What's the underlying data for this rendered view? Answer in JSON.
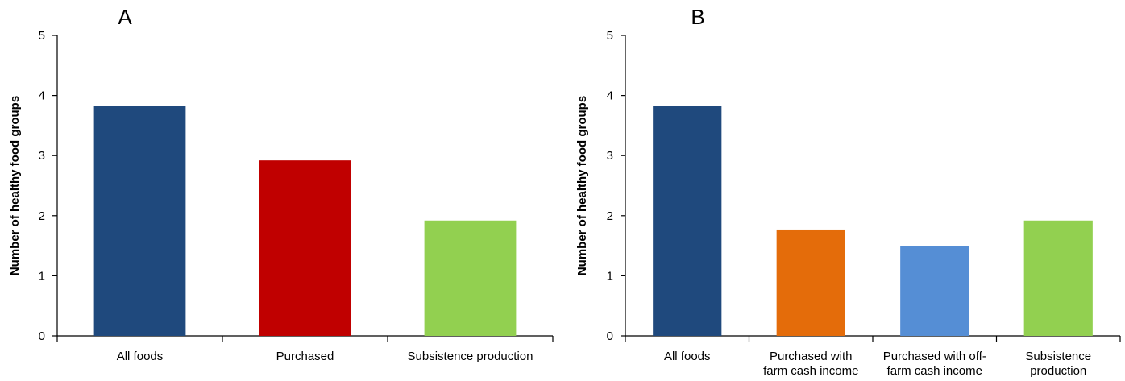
{
  "chart_data": [
    {
      "type": "bar",
      "panel": "A",
      "ylabel": "Number of healthy food groups",
      "ylim": [
        0,
        5
      ],
      "yticks": [
        0,
        1,
        2,
        3,
        4,
        5
      ],
      "categories": [
        [
          "All foods"
        ],
        [
          "Purchased"
        ],
        [
          "Subsistence production"
        ]
      ],
      "values": [
        3.83,
        2.92,
        1.92
      ],
      "colors": [
        "#1F497D",
        "#C00000",
        "#92D050"
      ],
      "grid": false,
      "legend": "none"
    },
    {
      "type": "bar",
      "panel": "B",
      "ylabel": "Number of healthy food groups",
      "ylim": [
        0,
        5
      ],
      "yticks": [
        0,
        1,
        2,
        3,
        4,
        5
      ],
      "categories": [
        [
          "All foods"
        ],
        [
          "Purchased with",
          "farm cash income"
        ],
        [
          "Purchased with off-",
          "farm cash income"
        ],
        [
          "Subsistence",
          "production"
        ]
      ],
      "values": [
        3.83,
        1.77,
        1.49,
        1.92
      ],
      "colors": [
        "#1F497D",
        "#E46C0A",
        "#558ED5",
        "#92D050"
      ],
      "grid": false,
      "legend": "none"
    }
  ]
}
